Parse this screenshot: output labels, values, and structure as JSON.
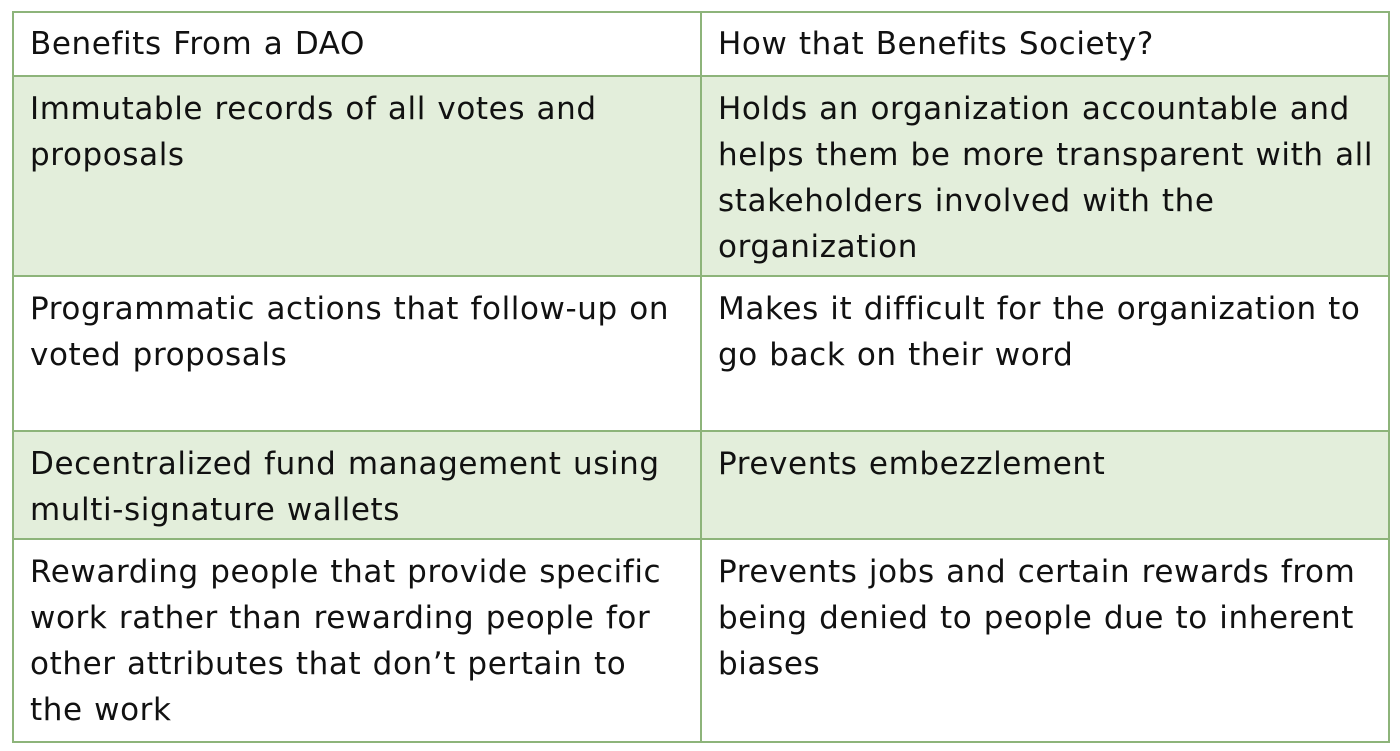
{
  "table": {
    "headers": [
      "Benefits From a DAO",
      "How that Benefits Society?"
    ],
    "rows": [
      {
        "benefit": "Immutable records of all votes and proposals",
        "society": "Holds an organization accountable and helps them be more transparent with all stakeholders involved with the organization"
      },
      {
        "benefit": "Programmatic actions that follow-up on voted proposals",
        "society": "Makes it difficult for the organization to go back on their word"
      },
      {
        "benefit": "Decentralized fund management using multi-signature wallets",
        "society": "Prevents embezzlement"
      },
      {
        "benefit": "Rewarding people that provide specific work rather than rewarding people for other attributes that don’t pertain to the work",
        "society": "Prevents jobs and certain rewards from being denied to people due to inherent biases"
      }
    ]
  },
  "colors": {
    "border": "#8db47a",
    "shaded_row": "#e3eedb",
    "background": "#ffffff",
    "text": "#111111"
  }
}
